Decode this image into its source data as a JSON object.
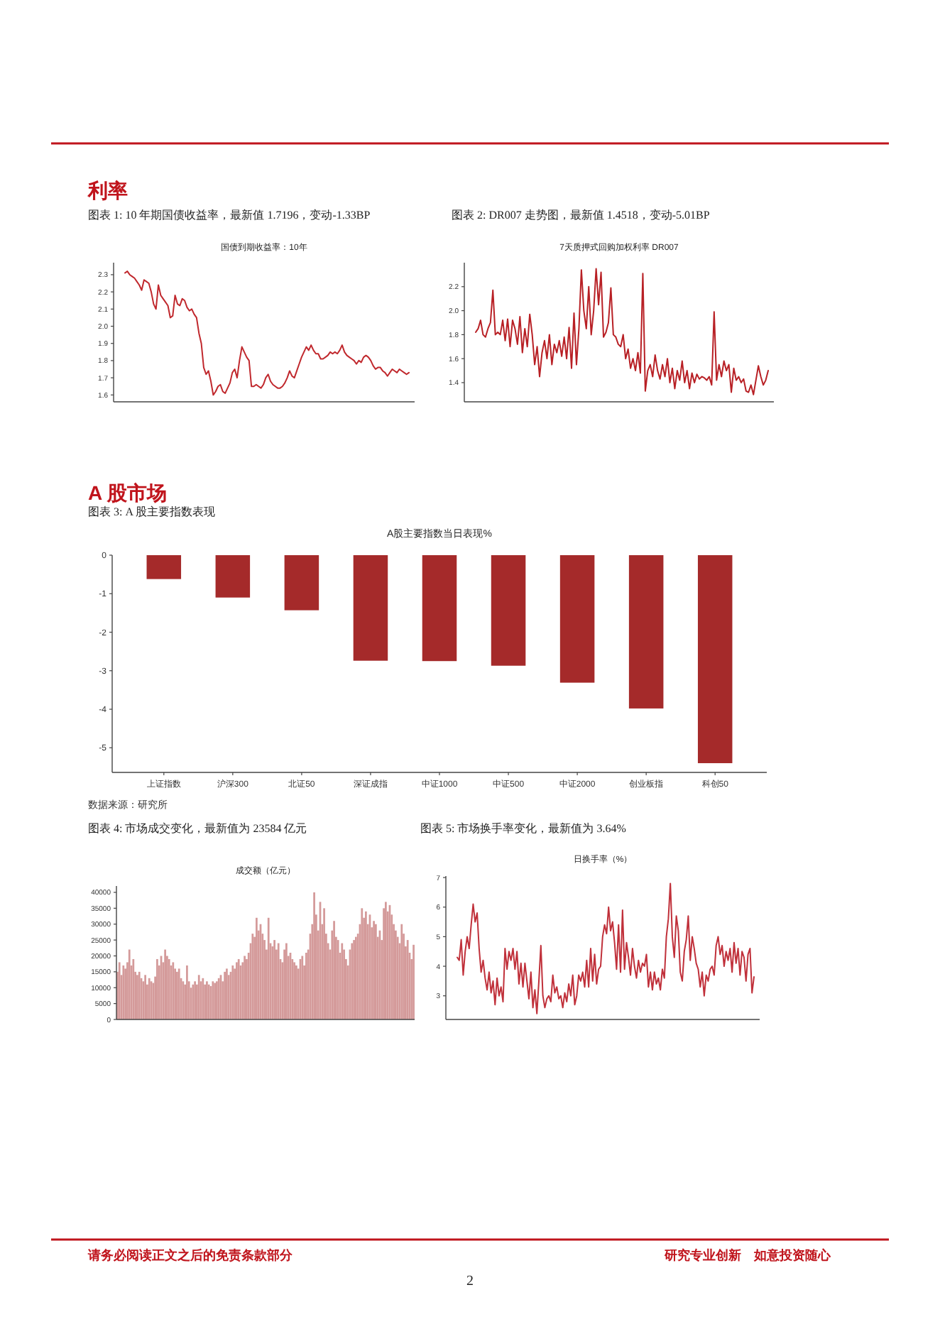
{
  "chart_data": [
    {
      "type": "other",
      "title": "利率"
    },
    {
      "type": "line",
      "title": "国债到期收益率：10年",
      "subtitle": "图表 1: 10 年期国债收益率，最新值 1.7196，变动-1.33BP",
      "tick_labels": "y",
      "color": "#c0282d",
      "ylim": [
        1.56,
        2.37
      ],
      "yticks": [
        1.6,
        1.7,
        1.8,
        1.9,
        {
          "value": 2,
          "label": "2.0"
        },
        2.1,
        2.2,
        2.3
      ],
      "categories": [
        null,
        null,
        null,
        null,
        null,
        null,
        null,
        null,
        null,
        null,
        null,
        null,
        null,
        null,
        null,
        null,
        null,
        null,
        null,
        null,
        null,
        null,
        null,
        null,
        null,
        null,
        null,
        null,
        null,
        null,
        null,
        null,
        null,
        null,
        null,
        null,
        null,
        null,
        null,
        null,
        null,
        null,
        null,
        null,
        null,
        null,
        null,
        null,
        null,
        null,
        null,
        null,
        null,
        null,
        null,
        null,
        null,
        null,
        null,
        null,
        null,
        null,
        null,
        null,
        null,
        null,
        null,
        null,
        null,
        null,
        null,
        null,
        null,
        null,
        null,
        null,
        null,
        null,
        null,
        null,
        null,
        null,
        null,
        null,
        null,
        null,
        null,
        null,
        null,
        null,
        null,
        null,
        null,
        null,
        null,
        null,
        null,
        null,
        null,
        null,
        null,
        null,
        null,
        null,
        null,
        null,
        null,
        null,
        null,
        null,
        null,
        null,
        null,
        null,
        null,
        null,
        null,
        null,
        null,
        null
      ],
      "values": [
        2.31,
        2.32,
        2.3,
        2.29,
        2.28,
        2.26,
        2.24,
        2.21,
        2.27,
        2.26,
        2.25,
        2.2,
        2.13,
        2.1,
        2.24,
        2.18,
        2.16,
        2.14,
        2.12,
        2.05,
        2.06,
        2.18,
        2.13,
        2.12,
        2.16,
        2.15,
        2.11,
        2.09,
        2.1,
        2.07,
        2.05,
        1.96,
        1.9,
        1.76,
        1.72,
        1.74,
        1.68,
        1.6,
        1.62,
        1.65,
        1.66,
        1.62,
        1.61,
        1.64,
        1.67,
        1.73,
        1.75,
        1.7,
        1.8,
        1.88,
        1.85,
        1.82,
        1.8,
        1.65,
        1.65,
        1.66,
        1.65,
        1.64,
        1.66,
        1.7,
        1.72,
        1.68,
        1.66,
        1.65,
        1.64,
        1.64,
        1.65,
        1.67,
        1.7,
        1.74,
        1.71,
        1.7,
        1.74,
        1.78,
        1.82,
        1.85,
        1.88,
        1.86,
        1.89,
        1.86,
        1.84,
        1.84,
        1.81,
        1.81,
        1.82,
        1.83,
        1.85,
        1.84,
        1.85,
        1.84,
        1.86,
        1.89,
        1.85,
        1.83,
        1.82,
        1.81,
        1.8,
        1.78,
        1.8,
        1.79,
        1.82,
        1.83,
        1.82,
        1.8,
        1.77,
        1.75,
        1.76,
        1.76,
        1.74,
        1.73,
        1.71,
        1.73,
        1.75,
        1.74,
        1.73,
        1.75,
        1.74,
        1.73,
        1.72,
        1.73
      ]
    },
    {
      "type": "line",
      "title": "7天质押式回购加权利率 DR007",
      "subtitle": "图表 2: DR007 走势图，最新值 1.4518，变动-5.01BP",
      "tick_labels": "y",
      "color": "#b82025",
      "ylim": [
        1.24,
        2.4
      ],
      "yticks": [
        1.4,
        1.6,
        1.8,
        {
          "value": 2,
          "label": "2.0"
        },
        2.2
      ],
      "categories": [
        null,
        null,
        null,
        null,
        null,
        null,
        null,
        null,
        null,
        null,
        null,
        null,
        null,
        null,
        null,
        null,
        null,
        null,
        null,
        null,
        null,
        null,
        null,
        null,
        null,
        null,
        null,
        null,
        null,
        null,
        null,
        null,
        null,
        null,
        null,
        null,
        null,
        null,
        null,
        null,
        null,
        null,
        null,
        null,
        null,
        null,
        null,
        null,
        null,
        null,
        null,
        null,
        null,
        null,
        null,
        null,
        null,
        null,
        null,
        null,
        null,
        null,
        null,
        null,
        null,
        null,
        null,
        null,
        null,
        null,
        null,
        null,
        null,
        null,
        null,
        null,
        null,
        null,
        null,
        null,
        null,
        null,
        null,
        null,
        null,
        null,
        null,
        null,
        null,
        null,
        null,
        null,
        null,
        null,
        null,
        null,
        null,
        null,
        null,
        null,
        null,
        null,
        null,
        null,
        null,
        null,
        null,
        null,
        null,
        null,
        null,
        null,
        null,
        null,
        null,
        null,
        null,
        null,
        null,
        null
      ],
      "values": [
        1.82,
        1.85,
        1.92,
        1.8,
        1.78,
        1.85,
        1.9,
        2.17,
        1.8,
        1.82,
        1.8,
        1.92,
        1.75,
        1.93,
        1.7,
        1.92,
        1.85,
        1.72,
        1.95,
        1.65,
        1.85,
        1.7,
        1.97,
        1.8,
        1.55,
        1.7,
        1.45,
        1.65,
        1.75,
        1.6,
        1.8,
        1.55,
        1.72,
        1.65,
        1.75,
        1.62,
        1.78,
        1.6,
        1.86,
        1.52,
        1.98,
        1.55,
        1.85,
        2.34,
        2.0,
        1.85,
        2.2,
        1.8,
        2.0,
        2.35,
        2.05,
        2.32,
        1.78,
        1.82,
        1.9,
        2.19,
        1.8,
        1.78,
        1.72,
        1.7,
        1.8,
        1.6,
        1.68,
        1.52,
        1.6,
        1.5,
        1.65,
        1.48,
        2.31,
        1.33,
        1.5,
        1.55,
        1.45,
        1.63,
        1.5,
        1.43,
        1.55,
        1.45,
        1.6,
        1.4,
        1.52,
        1.35,
        1.5,
        1.42,
        1.58,
        1.4,
        1.5,
        1.35,
        1.48,
        1.4,
        1.47,
        1.43,
        1.45,
        1.44,
        1.42,
        1.45,
        1.38,
        1.99,
        1.42,
        1.55,
        1.45,
        1.58,
        1.5,
        1.55,
        1.32,
        1.52,
        1.42,
        1.45,
        1.4,
        1.43,
        1.33,
        1.32,
        1.38,
        1.3,
        1.42,
        1.54,
        1.45,
        1.38,
        1.42,
        1.5
      ]
    },
    {
      "type": "other",
      "title": "A 股市场"
    },
    {
      "type": "bar",
      "title": "A股主要指数当日表现%",
      "subtitle": "图表 3: A 股主要指数表现",
      "annotations": [
        "数据来源：研究所"
      ],
      "color": "#a52a2a",
      "ylim": [
        -5.64,
        0
      ],
      "yticks": [
        0,
        -1,
        -2,
        -3,
        -4,
        -5
      ],
      "categories": [
        "上证指数",
        "沪深300",
        "北证50",
        "深证成指",
        "中证1000",
        "中证500",
        "中证2000",
        "创业板指",
        "科创50"
      ],
      "values": [
        -0.62,
        -1.1,
        -1.43,
        -2.74,
        -2.75,
        -2.87,
        -3.31,
        -3.98,
        -5.4
      ]
    },
    {
      "type": "bar",
      "title": "成交额（亿元）",
      "subtitle": "图表 4: 市场成交变化，最新值为 23584 亿元",
      "tick_labels": "y",
      "color": "#d49a9a",
      "ylim": [
        0,
        42000
      ],
      "yticks": [
        0,
        5000,
        10000,
        15000,
        20000,
        25000,
        30000,
        35000,
        40000
      ],
      "categories": [
        null,
        null,
        null,
        null,
        null,
        null,
        null,
        null,
        null,
        null,
        null,
        null,
        null,
        null,
        null,
        null,
        null,
        null,
        null,
        null,
        null,
        null,
        null,
        null,
        null,
        null,
        null,
        null,
        null,
        null,
        null,
        null,
        null,
        null,
        null,
        null,
        null,
        null,
        null,
        null,
        null,
        null,
        null,
        null,
        null,
        null,
        null,
        null,
        null,
        null,
        null,
        null,
        null,
        null,
        null,
        null,
        null,
        null,
        null,
        null,
        null,
        null,
        null,
        null,
        null,
        null,
        null,
        null,
        null,
        null,
        null,
        null,
        null,
        null,
        null,
        null,
        null,
        null,
        null,
        null,
        null,
        null,
        null,
        null,
        null,
        null,
        null,
        null,
        null,
        null,
        null,
        null,
        null,
        null,
        null,
        null,
        null,
        null,
        null,
        null,
        null,
        null,
        null,
        null,
        null,
        null,
        null,
        null,
        null,
        null,
        null,
        null,
        null,
        null,
        null,
        null,
        null,
        null,
        null,
        null,
        null,
        null,
        null,
        null,
        null,
        null,
        null,
        null,
        null,
        null,
        null,
        null,
        null,
        null,
        null,
        null,
        null,
        null,
        null,
        null,
        null,
        null,
        null,
        null,
        null,
        null,
        null,
        null,
        null,
        null
      ],
      "values": [
        15000,
        18000,
        14000,
        17000,
        16000,
        18000,
        22000,
        17000,
        19000,
        15000,
        14000,
        15000,
        13000,
        12000,
        14000,
        11000,
        13000,
        12000,
        11500,
        13500,
        19000,
        17000,
        20000,
        18000,
        22000,
        20000,
        19000,
        17000,
        18000,
        16000,
        15000,
        16000,
        13000,
        12000,
        11000,
        17000,
        12000,
        10000,
        11000,
        12000,
        11000,
        14000,
        12000,
        13000,
        11000,
        12000,
        11000,
        10500,
        12000,
        11500,
        12000,
        13000,
        14000,
        12000,
        15000,
        16000,
        14000,
        15000,
        17000,
        16000,
        18000,
        19000,
        17000,
        18000,
        20000,
        19000,
        21000,
        24000,
        27000,
        26000,
        32000,
        28000,
        30000,
        27000,
        25000,
        22000,
        32000,
        24000,
        23000,
        25000,
        22000,
        24000,
        19000,
        18000,
        22000,
        24000,
        20000,
        21000,
        19000,
        18000,
        17000,
        16000,
        19000,
        20000,
        17000,
        21000,
        22000,
        27000,
        30000,
        40000,
        33000,
        28000,
        37000,
        30000,
        35000,
        27000,
        24000,
        22000,
        28000,
        31000,
        26000,
        25000,
        21000,
        24000,
        22000,
        19000,
        17000,
        22000,
        24000,
        25000,
        26000,
        27000,
        30000,
        35000,
        32000,
        34000,
        30000,
        33000,
        29000,
        31000,
        30000,
        26000,
        28000,
        25000,
        35000,
        37000,
        34000,
        36000,
        33000,
        30000,
        28000,
        26000,
        24000,
        30000,
        27000,
        23000,
        25000,
        21000,
        19000,
        23500
      ]
    },
    {
      "type": "line",
      "title": "日换手率（%）",
      "subtitle": "图表 5: 市场换手率变化，最新值为 3.64%",
      "tick_labels": "y",
      "color": "#c0303a",
      "ylim": [
        2.2,
        7.05
      ],
      "yticks": [
        3,
        4,
        5,
        6,
        7
      ],
      "categories": [
        null,
        null,
        null,
        null,
        null,
        null,
        null,
        null,
        null,
        null,
        null,
        null,
        null,
        null,
        null,
        null,
        null,
        null,
        null,
        null,
        null,
        null,
        null,
        null,
        null,
        null,
        null,
        null,
        null,
        null,
        null,
        null,
        null,
        null,
        null,
        null,
        null,
        null,
        null,
        null,
        null,
        null,
        null,
        null,
        null,
        null,
        null,
        null,
        null,
        null,
        null,
        null,
        null,
        null,
        null,
        null,
        null,
        null,
        null,
        null,
        null,
        null,
        null,
        null,
        null,
        null,
        null,
        null,
        null,
        null,
        null,
        null,
        null,
        null,
        null,
        null,
        null,
        null,
        null,
        null,
        null,
        null,
        null,
        null,
        null,
        null,
        null,
        null,
        null,
        null,
        null,
        null,
        null,
        null,
        null,
        null,
        null,
        null,
        null,
        null,
        null,
        null,
        null,
        null,
        null,
        null,
        null,
        null,
        null,
        null,
        null,
        null,
        null,
        null,
        null,
        null,
        null,
        null,
        null,
        null,
        null,
        null,
        null,
        null,
        null,
        null,
        null,
        null,
        null,
        null,
        null,
        null,
        null,
        null,
        null,
        null,
        null,
        null,
        null,
        null,
        null,
        null,
        null,
        null,
        null,
        null,
        null,
        null,
        null,
        null
      ],
      "values": [
        4.3,
        4.2,
        4.9,
        3.7,
        4.5,
        5.0,
        4.6,
        5.4,
        6.1,
        5.5,
        5.8,
        4.6,
        3.8,
        4.2,
        3.6,
        3.2,
        3.8,
        3.1,
        3.5,
        2.7,
        3.6,
        3.0,
        3.3,
        2.8,
        4.6,
        3.9,
        4.5,
        4.2,
        4.6,
        3.9,
        4.5,
        3.4,
        4.1,
        3.3,
        4.1,
        3.5,
        2.9,
        3.8,
        2.6,
        3.2,
        2.4,
        3.5,
        4.7,
        3.0,
        2.6,
        2.9,
        3.0,
        2.8,
        3.7,
        3.1,
        3.3,
        2.9,
        3.0,
        2.6,
        3.1,
        2.8,
        3.4,
        3.0,
        3.7,
        2.7,
        3.0,
        3.7,
        3.5,
        3.8,
        3.3,
        4.2,
        3.3,
        4.6,
        3.5,
        4.4,
        3.4,
        3.9,
        4.0,
        5.0,
        5.4,
        5.1,
        6.0,
        5.2,
        5.5,
        4.8,
        3.9,
        5.4,
        3.8,
        5.9,
        3.9,
        4.8,
        4.3,
        3.7,
        4.6,
        4.0,
        3.6,
        4.2,
        3.8,
        4.1,
        4.0,
        4.4,
        3.3,
        3.8,
        3.2,
        3.8,
        3.4,
        3.6,
        3.2,
        3.9,
        3.6,
        5.0,
        5.6,
        6.8,
        5.0,
        4.3,
        5.7,
        5.2,
        3.8,
        3.5,
        4.5,
        4.9,
        5.7,
        4.2,
        5.0,
        4.6,
        4.1,
        3.9,
        3.3,
        3.8,
        3.0,
        3.7,
        3.5,
        3.9,
        4.0,
        3.7,
        4.7,
        5.0,
        4.4,
        4.7,
        4.0,
        4.5,
        4.2,
        4.6,
        3.8,
        4.8,
        4.1,
        4.6,
        3.7,
        4.5,
        4.3,
        3.5,
        4.4,
        4.6,
        3.1,
        3.64
      ]
    },
    {
      "type": "other",
      "annotations": [
        "请务必阅读正文之后的免责条款部分",
        "研究专业创新　如意投资随心",
        "2"
      ]
    }
  ]
}
